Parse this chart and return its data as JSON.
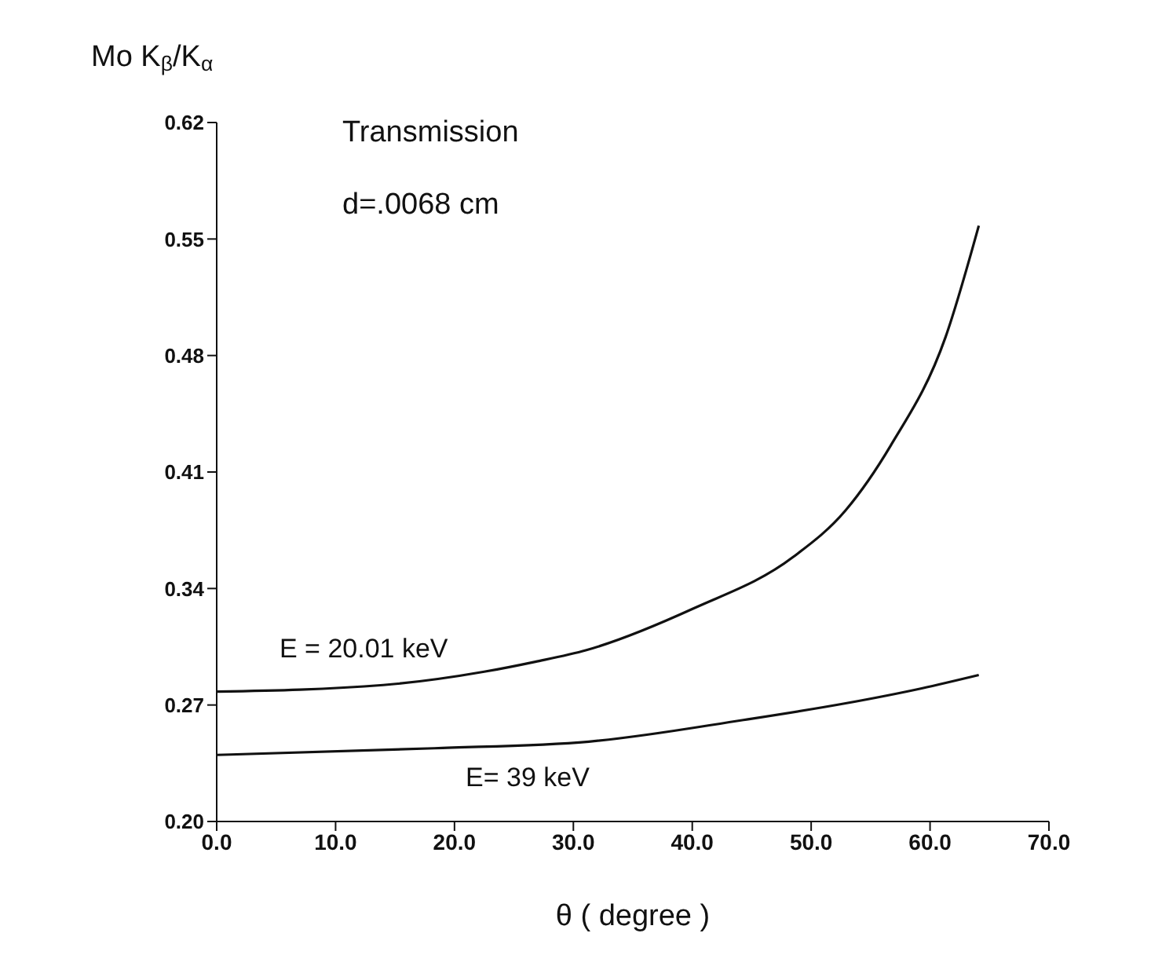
{
  "chart_data": {
    "type": "line",
    "ylabel": "Mo K$_{β}$/K$_{α}$",
    "xlabel": "θ ( degree )",
    "annotations": [
      "Transmission",
      "d=.0068 cm"
    ],
    "series": [
      {
        "name": "E = 20.01 keV",
        "color": "#111111",
        "x": [
          0,
          14.0,
          22.5,
          26.8,
          31.1,
          40.1,
          48.5,
          52.9,
          56.7,
          61.3,
          64.1
        ],
        "values": [
          0.278,
          0.282,
          0.29,
          0.296,
          0.303,
          0.328,
          0.359,
          0.387,
          0.426,
          0.491,
          0.558
        ]
      },
      {
        "name": "E= 39  keV",
        "color": "#111111",
        "x": [
          0,
          18.3,
          31.3,
          44.3,
          52.9,
          59.3,
          64.1
        ],
        "values": [
          0.24,
          0.244,
          0.248,
          0.261,
          0.271,
          0.28,
          0.288
        ]
      }
    ],
    "xlim": [
      0,
      70
    ],
    "xticks": [
      {
        "value": 0,
        "label": "0.0"
      },
      {
        "value": 10,
        "label": "10.0"
      },
      {
        "value": 20,
        "label": "20.0"
      },
      {
        "value": 30,
        "label": "30.0"
      },
      {
        "value": 40,
        "label": "40.0"
      },
      {
        "value": 50,
        "label": "50.0"
      },
      {
        "value": 60,
        "label": "60.0"
      },
      {
        "value": 70,
        "label": "70.0"
      }
    ],
    "ylim": [
      0.2,
      0.62
    ],
    "yticks": [
      {
        "value": 0.2,
        "label": "0.20"
      },
      {
        "value": 0.27,
        "label": "0.27"
      },
      {
        "value": 0.34,
        "label": "0.34"
      },
      {
        "value": 0.41,
        "label": "0.41"
      },
      {
        "value": 0.48,
        "label": "0.48"
      },
      {
        "value": 0.55,
        "label": "0.55"
      },
      {
        "value": 0.62,
        "label": "0.62"
      }
    ],
    "grid": false,
    "legend": false,
    "marker": "none",
    "line_style": "solid"
  }
}
